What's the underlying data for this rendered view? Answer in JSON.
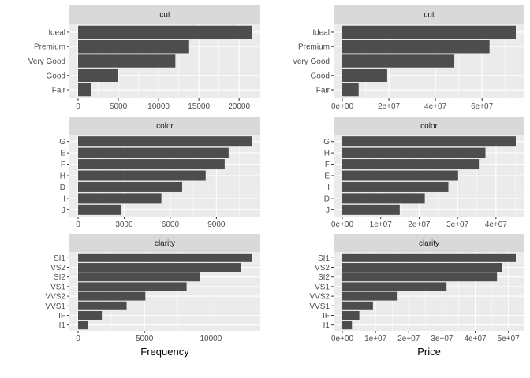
{
  "chart_data": [
    {
      "type": "bar",
      "orientation": "horizontal",
      "facet": "cut",
      "strip_label": "cut",
      "measure": "Frequency",
      "categories": [
        "Ideal",
        "Premium",
        "Very Good",
        "Good",
        "Fair"
      ],
      "values": [
        21551,
        13791,
        12082,
        4906,
        1610
      ],
      "ticks": [
        0,
        5000,
        10000,
        15000,
        20000
      ],
      "tick_labels": [
        "0",
        "5000",
        "10000",
        "15000",
        "20000"
      ],
      "grid": true
    },
    {
      "type": "bar",
      "orientation": "horizontal",
      "facet": "cut",
      "strip_label": "cut",
      "measure": "Price",
      "categories": [
        "Ideal",
        "Premium",
        "Very Good",
        "Good",
        "Fair"
      ],
      "values": [
        74513487,
        63221498,
        48107623,
        19275009,
        7017600
      ],
      "ticks": [
        0,
        20000000,
        40000000,
        60000000
      ],
      "tick_labels": [
        "0e+00",
        "2e+07",
        "4e+07",
        "6e+07"
      ],
      "grid": true
    },
    {
      "type": "bar",
      "orientation": "horizontal",
      "facet": "color",
      "strip_label": "color",
      "measure": "Frequency",
      "categories": [
        "G",
        "E",
        "F",
        "H",
        "D",
        "I",
        "J"
      ],
      "values": [
        11292,
        9797,
        9542,
        8304,
        6775,
        5422,
        2808
      ],
      "ticks": [
        0,
        3000,
        6000,
        9000
      ],
      "tick_labels": [
        "0",
        "3000",
        "6000",
        "9000"
      ],
      "grid": true
    },
    {
      "type": "bar",
      "orientation": "horizontal",
      "facet": "color",
      "strip_label": "color",
      "measure": "Price",
      "categories": [
        "G",
        "H",
        "F",
        "E",
        "I",
        "D",
        "J"
      ],
      "values": [
        45158240,
        37257301,
        35542866,
        30142944,
        27608146,
        21476439,
        14949281
      ],
      "ticks": [
        0,
        10000000,
        20000000,
        30000000,
        40000000
      ],
      "tick_labels": [
        "0e+00",
        "1e+07",
        "2e+07",
        "3e+07",
        "4e+07"
      ],
      "grid": true
    },
    {
      "type": "bar",
      "orientation": "horizontal",
      "facet": "clarity",
      "strip_label": "clarity",
      "measure": "Frequency",
      "categories": [
        "SI1",
        "VS2",
        "SI2",
        "VS1",
        "VVS2",
        "VVS1",
        "IF",
        "I1"
      ],
      "values": [
        13065,
        12258,
        9194,
        8171,
        5066,
        3655,
        1790,
        741
      ],
      "ticks": [
        0,
        5000,
        10000
      ],
      "tick_labels": [
        "0",
        "5000",
        "10000"
      ],
      "grid": true
    },
    {
      "type": "bar",
      "orientation": "horizontal",
      "facet": "clarity",
      "strip_label": "clarity",
      "measure": "Price",
      "categories": [
        "SI1",
        "VS2",
        "SI2",
        "VS1",
        "VVS2",
        "VVS1",
        "IF",
        "I1"
      ],
      "values": [
        52212000,
        48113000,
        46550000,
        31370000,
        16640000,
        9222000,
        5130000,
        2907000
      ],
      "ticks": [
        0,
        10000000,
        20000000,
        30000000,
        40000000,
        50000000
      ],
      "tick_labels": [
        "0e+00",
        "1e+07",
        "2e+07",
        "3e+07",
        "4e+07",
        "5e+07"
      ],
      "grid": true
    }
  ],
  "xlabels": [
    "Frequency",
    "Price"
  ],
  "colors": {
    "bar": "#4d4d4d",
    "panel": "#ebebeb",
    "grid": "#ffffff",
    "strip": "#d9d9d9"
  }
}
